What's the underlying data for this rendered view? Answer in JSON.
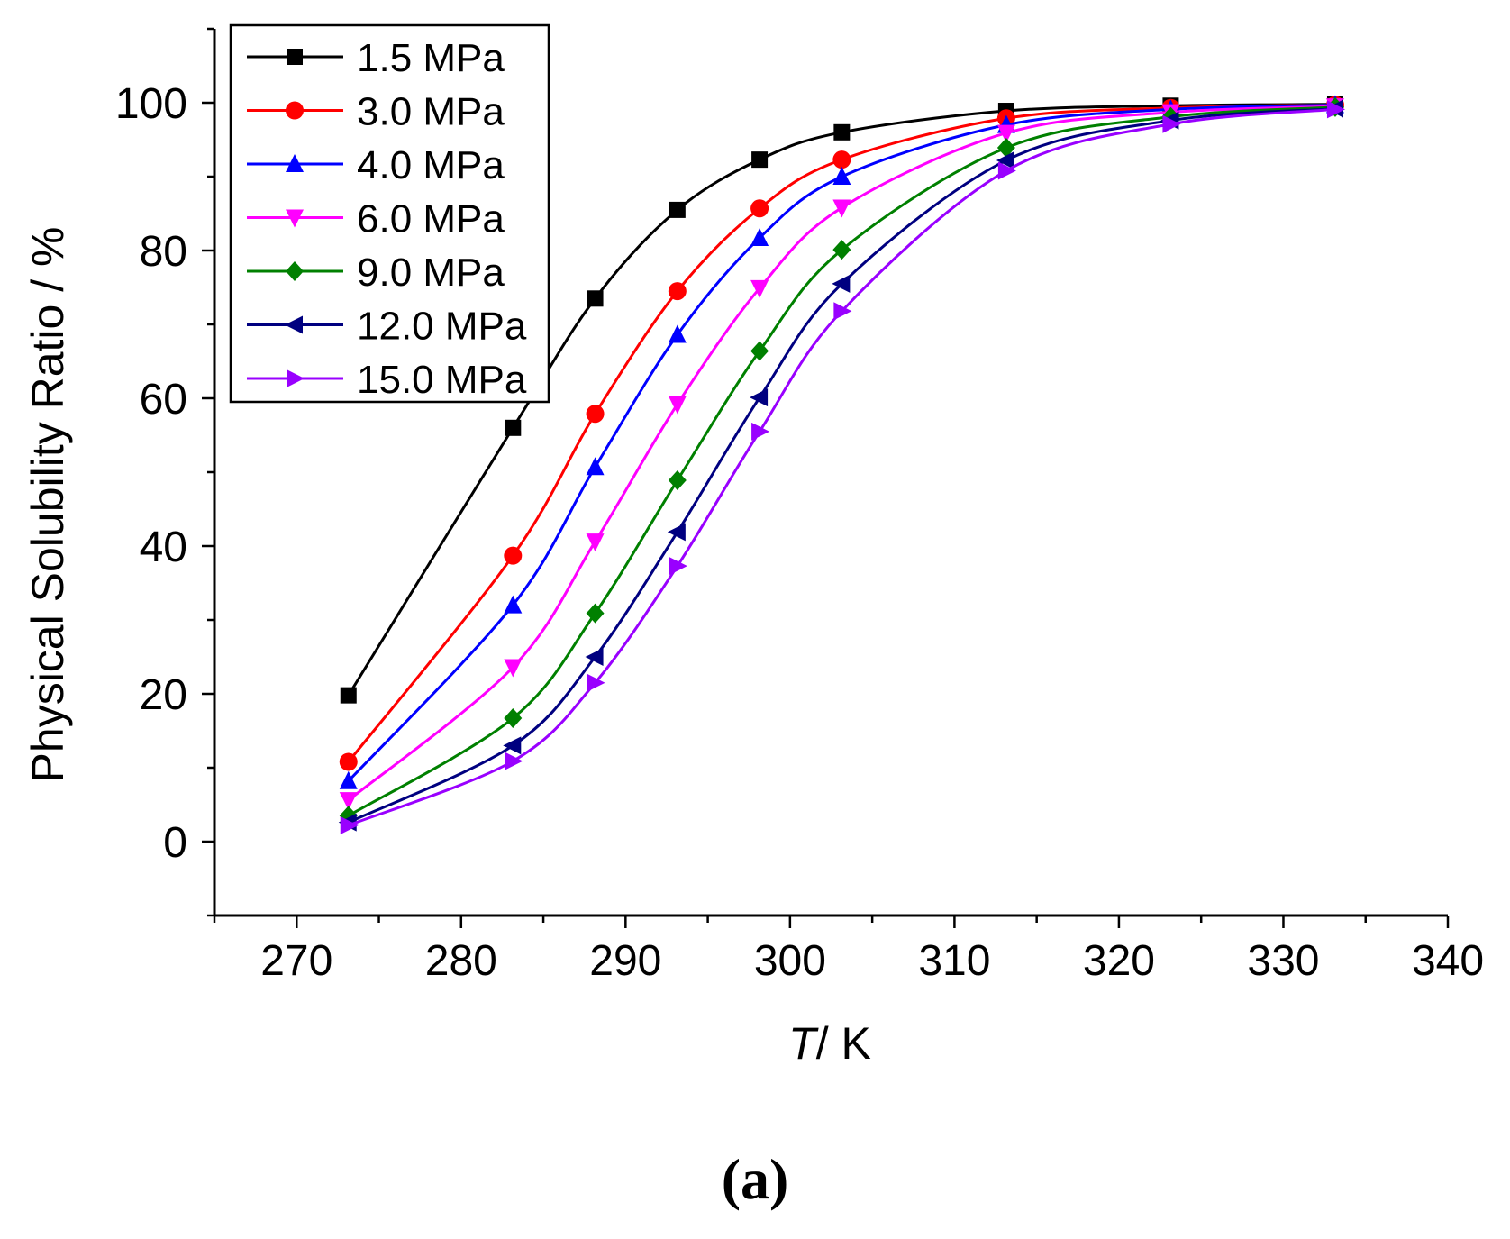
{
  "chart_data": {
    "type": "line",
    "xlabel_italic": "T",
    "xlabel_rest": "/ K",
    "ylabel": "Physical Solubility Ratio / %",
    "xlim": [
      265,
      340
    ],
    "ylim": [
      -10,
      110
    ],
    "xticks": [
      270,
      280,
      290,
      300,
      310,
      320,
      330,
      340
    ],
    "yticks": [
      0,
      20,
      40,
      60,
      80,
      100
    ],
    "panel_label": "(a)",
    "x": [
      273.15,
      283.15,
      288.15,
      293.15,
      298.15,
      303.15,
      313.15,
      323.15,
      333.15
    ],
    "series": [
      {
        "name": "1.5 MPa",
        "color": "#000000",
        "marker": "square",
        "values": [
          19.8,
          56.0,
          73.5,
          85.5,
          92.3,
          96.0,
          98.9,
          99.6,
          99.8
        ]
      },
      {
        "name": "3.0 MPa",
        "color": "#ff0000",
        "marker": "circle",
        "values": [
          10.8,
          38.7,
          57.9,
          74.5,
          85.7,
          92.3,
          97.9,
          99.3,
          99.7
        ]
      },
      {
        "name": "4.0 MPa",
        "color": "#0000ff",
        "marker": "triangle-up",
        "values": [
          8.2,
          32.0,
          50.7,
          68.6,
          81.7,
          90.0,
          97.0,
          99.1,
          99.7
        ]
      },
      {
        "name": "6.0 MPa",
        "color": "#ff00ff",
        "marker": "triangle-down",
        "values": [
          5.6,
          23.6,
          40.6,
          59.2,
          74.9,
          85.8,
          95.9,
          98.7,
          99.5
        ]
      },
      {
        "name": "9.0 MPa",
        "color": "#008000",
        "marker": "diamond",
        "values": [
          3.5,
          16.7,
          30.9,
          48.9,
          66.4,
          80.1,
          93.9,
          98.1,
          99.4
        ]
      },
      {
        "name": "12.0 MPa",
        "color": "#000080",
        "marker": "triangle-left",
        "values": [
          2.6,
          13.0,
          25.0,
          41.9,
          60.1,
          75.5,
          92.2,
          97.6,
          99.2
        ]
      },
      {
        "name": "15.0 MPa",
        "color": "#9900ff",
        "marker": "triangle-right",
        "values": [
          2.2,
          10.9,
          21.5,
          37.3,
          55.5,
          71.8,
          90.8,
          97.1,
          99.1
        ]
      }
    ]
  }
}
